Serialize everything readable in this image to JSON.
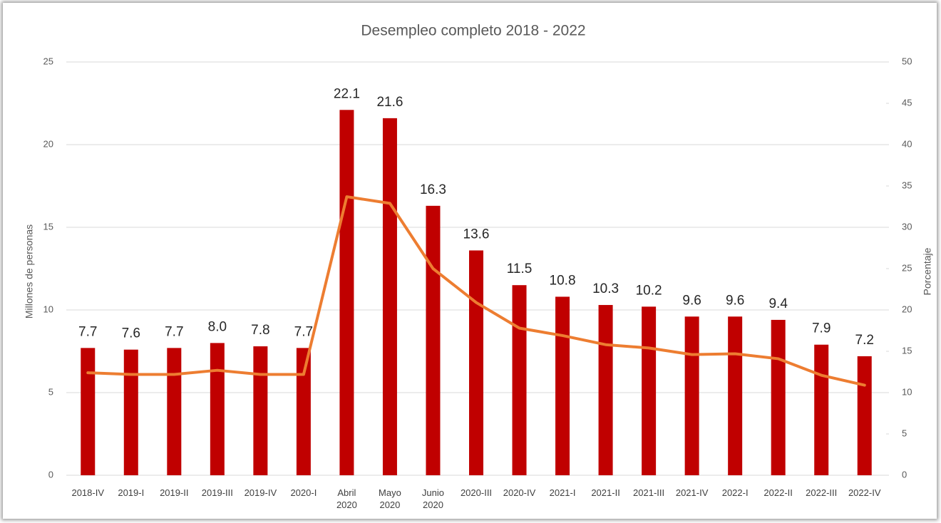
{
  "chart_data": {
    "type": "bar",
    "title": "Desempleo completo 2018 - 2022",
    "y_label": "Millones de personas",
    "y2_label": "Porcentaje",
    "categories": [
      "2018-IV",
      "2019-I",
      "2019-II",
      "2019-III",
      "2019-IV",
      "2020-I",
      "Abril 2020",
      "Mayo 2020",
      "Junio 2020",
      "2020-III",
      "2020-IV",
      "2021-I",
      "2021-II",
      "2021-III",
      "2021-IV",
      "2022-I",
      "2022-II",
      "2022-III",
      "2022-IV"
    ],
    "series": [
      {
        "type": "bar",
        "color": "#c00000",
        "values": [
          7.7,
          7.6,
          7.7,
          8.0,
          7.8,
          7.7,
          22.1,
          21.6,
          16.3,
          13.6,
          11.5,
          10.8,
          10.3,
          10.2,
          9.6,
          9.6,
          9.4,
          7.9,
          7.2
        ],
        "value_labels": [
          "7.7",
          "7.6",
          "7.7",
          "8.0",
          "7.8",
          "7.7",
          "22.1",
          "21.6",
          "16.3",
          "13.6",
          "11.5",
          "10.8",
          "10.3",
          "10.2",
          "9.6",
          "9.6",
          "9.4",
          "7.9",
          "7.2"
        ]
      },
      {
        "type": "line",
        "axis": "y2",
        "color": "#ed7d31",
        "values": [
          12.4,
          12.2,
          12.2,
          12.7,
          12.2,
          12.2,
          33.7,
          32.9,
          25.0,
          20.9,
          17.8,
          16.9,
          15.8,
          15.4,
          14.6,
          14.7,
          14.1,
          12.1,
          10.9
        ]
      }
    ],
    "ylim": [
      0,
      25
    ],
    "yticks": [
      0,
      5,
      10,
      15,
      20,
      25
    ],
    "y2lim": [
      0,
      50
    ],
    "y2ticks": [
      0,
      5,
      10,
      15,
      20,
      25,
      30,
      35,
      40,
      45,
      50
    ],
    "grid": true
  }
}
